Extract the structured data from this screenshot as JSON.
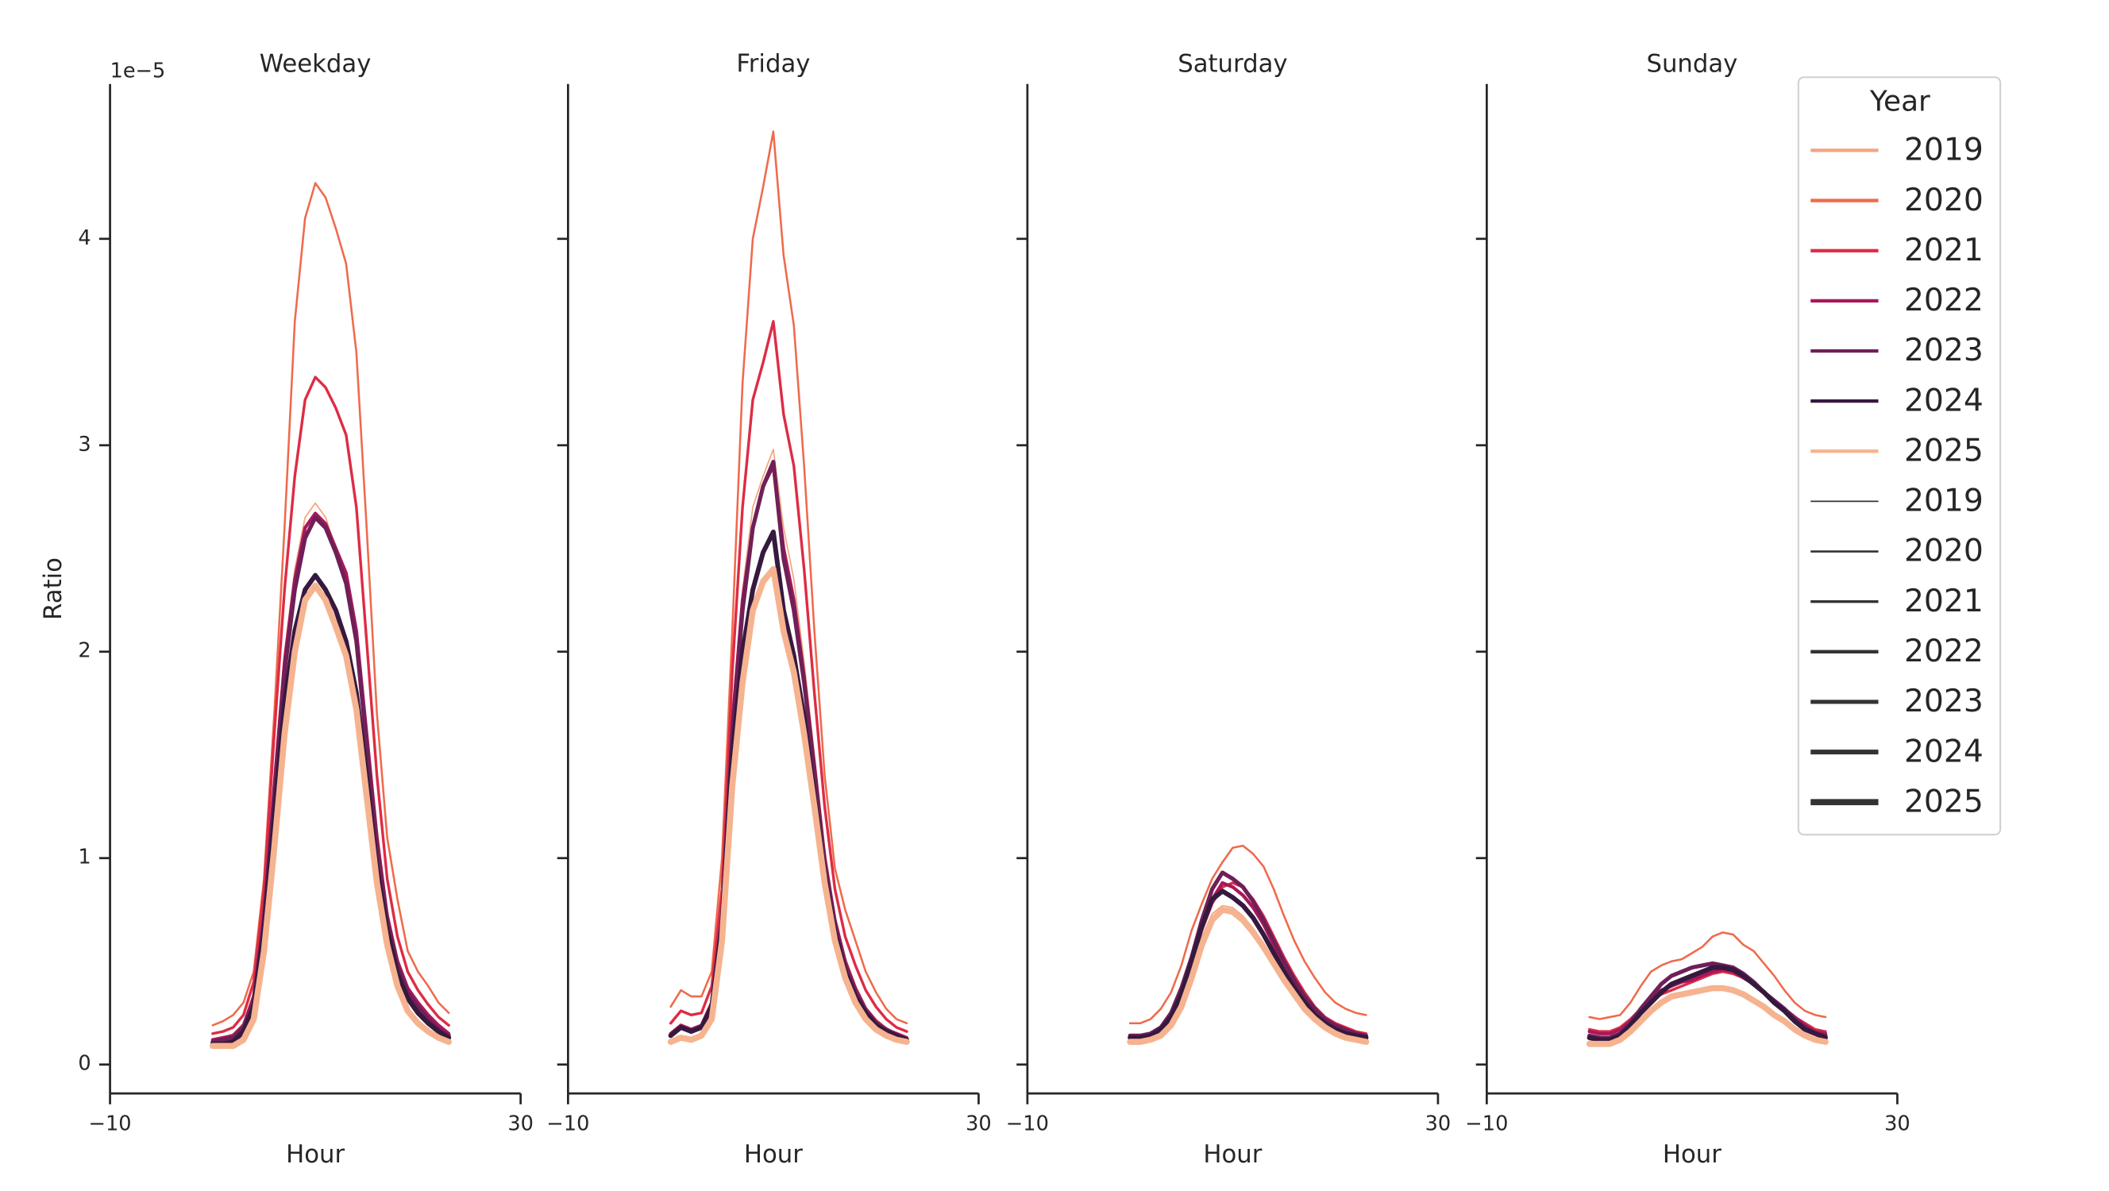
{
  "chart_data": [
    {
      "type": "line",
      "title": "Weekday",
      "xlabel": "Hour",
      "ylabel": "Ratio",
      "y_offset_label": "1e−5",
      "ytick_labels": true,
      "x": [
        0,
        1,
        2,
        3,
        4,
        5,
        6,
        7,
        8,
        9,
        10,
        11,
        12,
        13,
        14,
        15,
        16,
        17,
        18,
        19,
        20,
        21,
        22,
        23
      ],
      "xlim": [
        -10,
        30
      ],
      "xticks": [
        {
          "value": -10,
          "label": "−10"
        },
        30
      ],
      "ylim": [
        -0.14,
        4.75
      ],
      "yticks": [
        0,
        1,
        2,
        3,
        4
      ],
      "series": [
        {
          "name": "2019",
          "color": "#f3a481",
          "linewidth": 1,
          "values": [
            0.12,
            0.13,
            0.15,
            0.2,
            0.35,
            0.75,
            1.4,
            2.0,
            2.4,
            2.65,
            2.72,
            2.65,
            2.5,
            2.35,
            2.1,
            1.65,
            1.15,
            0.75,
            0.52,
            0.38,
            0.3,
            0.24,
            0.19,
            0.15
          ]
        },
        {
          "name": "2020",
          "color": "#ef6a4c",
          "linewidth": 1.5,
          "values": [
            0.19,
            0.21,
            0.24,
            0.3,
            0.45,
            0.9,
            1.7,
            2.6,
            3.6,
            4.1,
            4.27,
            4.2,
            4.05,
            3.88,
            3.45,
            2.6,
            1.7,
            1.1,
            0.8,
            0.55,
            0.45,
            0.38,
            0.3,
            0.25
          ]
        },
        {
          "name": "2021",
          "color": "#dd2c45",
          "linewidth": 2,
          "values": [
            0.15,
            0.16,
            0.18,
            0.24,
            0.4,
            0.85,
            1.6,
            2.3,
            2.85,
            3.22,
            3.33,
            3.28,
            3.18,
            3.05,
            2.7,
            2.05,
            1.4,
            0.9,
            0.62,
            0.45,
            0.36,
            0.29,
            0.23,
            0.19
          ]
        },
        {
          "name": "2022",
          "color": "#a8185a",
          "linewidth": 2.5,
          "values": [
            0.12,
            0.13,
            0.14,
            0.19,
            0.33,
            0.72,
            1.35,
            1.95,
            2.35,
            2.6,
            2.67,
            2.62,
            2.5,
            2.38,
            2.1,
            1.6,
            1.1,
            0.72,
            0.5,
            0.37,
            0.3,
            0.24,
            0.19,
            0.15
          ]
        },
        {
          "name": "2023",
          "color": "#701f57",
          "linewidth": 3,
          "values": [
            0.11,
            0.12,
            0.13,
            0.18,
            0.3,
            0.7,
            1.3,
            1.9,
            2.3,
            2.55,
            2.65,
            2.6,
            2.48,
            2.33,
            2.05,
            1.55,
            1.05,
            0.7,
            0.48,
            0.35,
            0.28,
            0.22,
            0.17,
            0.14
          ]
        },
        {
          "name": "2024",
          "color": "#35193e",
          "linewidth": 3.5,
          "values": [
            0.1,
            0.1,
            0.11,
            0.16,
            0.28,
            0.65,
            1.2,
            1.75,
            2.1,
            2.3,
            2.37,
            2.3,
            2.2,
            2.05,
            1.8,
            1.4,
            0.95,
            0.65,
            0.44,
            0.32,
            0.25,
            0.2,
            0.16,
            0.13
          ]
        },
        {
          "name": "2025",
          "color": "#f6b38f",
          "linewidth": 4.5,
          "values": [
            0.09,
            0.09,
            0.09,
            0.12,
            0.22,
            0.55,
            1.05,
            1.6,
            2.0,
            2.25,
            2.32,
            2.25,
            2.12,
            1.98,
            1.72,
            1.3,
            0.88,
            0.58,
            0.38,
            0.26,
            0.2,
            0.16,
            0.13,
            0.11
          ]
        }
      ]
    },
    {
      "type": "line",
      "title": "Friday",
      "xlabel": "Hour",
      "ytick_labels": false,
      "x": [
        0,
        1,
        2,
        3,
        4,
        5,
        6,
        7,
        8,
        9,
        10,
        11,
        12,
        13,
        14,
        15,
        16,
        17,
        18,
        19,
        20,
        21,
        22,
        23
      ],
      "xlim": [
        -10,
        30
      ],
      "xticks": [
        {
          "value": -10,
          "label": "−10"
        },
        30
      ],
      "ylim": [
        -0.14,
        4.75
      ],
      "yticks": [
        0,
        1,
        2,
        3,
        4
      ],
      "series": [
        {
          "name": "2019",
          "color": "#f3a481",
          "linewidth": 1,
          "values": [
            0.15,
            0.19,
            0.17,
            0.19,
            0.3,
            0.75,
            1.7,
            2.3,
            2.7,
            2.85,
            2.98,
            2.6,
            2.35,
            1.95,
            1.5,
            1.05,
            0.72,
            0.52,
            0.38,
            0.28,
            0.22,
            0.18,
            0.15,
            0.13
          ]
        },
        {
          "name": "2020",
          "color": "#ef6a4c",
          "linewidth": 1.5,
          "values": [
            0.28,
            0.36,
            0.33,
            0.33,
            0.45,
            1.0,
            2.1,
            3.3,
            4.0,
            4.25,
            4.52,
            3.92,
            3.58,
            2.9,
            2.1,
            1.4,
            0.95,
            0.75,
            0.6,
            0.45,
            0.35,
            0.27,
            0.22,
            0.2
          ]
        },
        {
          "name": "2021",
          "color": "#dd2c45",
          "linewidth": 2,
          "values": [
            0.2,
            0.26,
            0.24,
            0.25,
            0.38,
            0.85,
            1.9,
            2.7,
            3.22,
            3.4,
            3.6,
            3.15,
            2.9,
            2.4,
            1.8,
            1.25,
            0.85,
            0.62,
            0.48,
            0.36,
            0.28,
            0.22,
            0.18,
            0.16
          ]
        },
        {
          "name": "2022",
          "color": "#a8185a",
          "linewidth": 2.5,
          "values": [
            0.15,
            0.19,
            0.17,
            0.19,
            0.3,
            0.72,
            1.65,
            2.25,
            2.6,
            2.8,
            2.9,
            2.5,
            2.25,
            1.88,
            1.45,
            1.0,
            0.7,
            0.5,
            0.37,
            0.27,
            0.21,
            0.17,
            0.15,
            0.13
          ]
        },
        {
          "name": "2023",
          "color": "#701f57",
          "linewidth": 3,
          "values": [
            0.14,
            0.18,
            0.16,
            0.18,
            0.29,
            0.7,
            1.6,
            2.2,
            2.6,
            2.8,
            2.92,
            2.45,
            2.2,
            1.85,
            1.42,
            0.98,
            0.68,
            0.48,
            0.35,
            0.26,
            0.2,
            0.17,
            0.14,
            0.12
          ]
        },
        {
          "name": "2024",
          "color": "#35193e",
          "linewidth": 3.5,
          "values": [
            0.14,
            0.18,
            0.16,
            0.18,
            0.28,
            0.68,
            1.5,
            2.0,
            2.3,
            2.48,
            2.58,
            2.2,
            1.98,
            1.68,
            1.3,
            0.92,
            0.64,
            0.45,
            0.33,
            0.25,
            0.19,
            0.16,
            0.14,
            0.12
          ]
        },
        {
          "name": "2025",
          "color": "#f6b38f",
          "linewidth": 4.5,
          "values": [
            0.11,
            0.13,
            0.12,
            0.14,
            0.22,
            0.6,
            1.35,
            1.85,
            2.2,
            2.34,
            2.4,
            2.1,
            1.9,
            1.6,
            1.25,
            0.88,
            0.6,
            0.42,
            0.3,
            0.22,
            0.17,
            0.14,
            0.12,
            0.11
          ]
        }
      ]
    },
    {
      "type": "line",
      "title": "Saturday",
      "xlabel": "Hour",
      "ytick_labels": false,
      "x": [
        0,
        1,
        2,
        3,
        4,
        5,
        6,
        7,
        8,
        9,
        10,
        11,
        12,
        13,
        14,
        15,
        16,
        17,
        18,
        19,
        20,
        21,
        22,
        23
      ],
      "xlim": [
        -10,
        30
      ],
      "xticks": [
        {
          "value": -10,
          "label": "−10"
        },
        30
      ],
      "ylim": [
        -0.14,
        4.75
      ],
      "yticks": [
        0,
        1,
        2,
        3,
        4
      ],
      "series": [
        {
          "name": "2019",
          "color": "#f3a481",
          "linewidth": 1,
          "values": [
            0.12,
            0.12,
            0.13,
            0.15,
            0.21,
            0.31,
            0.46,
            0.62,
            0.73,
            0.77,
            0.76,
            0.72,
            0.66,
            0.59,
            0.51,
            0.43,
            0.35,
            0.28,
            0.23,
            0.19,
            0.16,
            0.14,
            0.13,
            0.12
          ]
        },
        {
          "name": "2020",
          "color": "#ef6a4c",
          "linewidth": 1.5,
          "values": [
            0.2,
            0.2,
            0.22,
            0.27,
            0.35,
            0.48,
            0.65,
            0.78,
            0.9,
            0.98,
            1.05,
            1.06,
            1.02,
            0.96,
            0.85,
            0.72,
            0.6,
            0.5,
            0.42,
            0.35,
            0.3,
            0.27,
            0.25,
            0.24
          ]
        },
        {
          "name": "2021",
          "color": "#dd2c45",
          "linewidth": 2,
          "values": [
            0.14,
            0.14,
            0.15,
            0.18,
            0.25,
            0.36,
            0.5,
            0.65,
            0.78,
            0.86,
            0.88,
            0.86,
            0.8,
            0.72,
            0.62,
            0.52,
            0.43,
            0.35,
            0.28,
            0.23,
            0.2,
            0.18,
            0.16,
            0.15
          ]
        },
        {
          "name": "2022",
          "color": "#a8185a",
          "linewidth": 2.5,
          "values": [
            0.14,
            0.14,
            0.15,
            0.18,
            0.25,
            0.36,
            0.5,
            0.66,
            0.8,
            0.88,
            0.86,
            0.82,
            0.76,
            0.68,
            0.58,
            0.48,
            0.4,
            0.32,
            0.26,
            0.22,
            0.19,
            0.17,
            0.15,
            0.14
          ]
        },
        {
          "name": "2023",
          "color": "#701f57",
          "linewidth": 3,
          "values": [
            0.14,
            0.14,
            0.15,
            0.18,
            0.25,
            0.37,
            0.52,
            0.7,
            0.85,
            0.93,
            0.9,
            0.86,
            0.79,
            0.7,
            0.6,
            0.5,
            0.41,
            0.33,
            0.27,
            0.22,
            0.19,
            0.17,
            0.15,
            0.14
          ]
        },
        {
          "name": "2024",
          "color": "#35193e",
          "linewidth": 3.5,
          "values": [
            0.13,
            0.13,
            0.14,
            0.17,
            0.23,
            0.34,
            0.5,
            0.67,
            0.8,
            0.84,
            0.81,
            0.77,
            0.71,
            0.63,
            0.54,
            0.45,
            0.37,
            0.3,
            0.24,
            0.2,
            0.17,
            0.15,
            0.14,
            0.13
          ]
        },
        {
          "name": "2025",
          "color": "#f6b38f",
          "linewidth": 4.5,
          "values": [
            0.11,
            0.11,
            0.12,
            0.14,
            0.19,
            0.28,
            0.42,
            0.58,
            0.7,
            0.75,
            0.74,
            0.7,
            0.64,
            0.57,
            0.49,
            0.41,
            0.34,
            0.27,
            0.22,
            0.18,
            0.15,
            0.13,
            0.12,
            0.11
          ]
        }
      ]
    },
    {
      "type": "line",
      "title": "Sunday",
      "xlabel": "Hour",
      "ytick_labels": false,
      "x": [
        0,
        1,
        2,
        3,
        4,
        5,
        6,
        7,
        8,
        9,
        10,
        11,
        12,
        13,
        14,
        15,
        16,
        17,
        18,
        19,
        20,
        21,
        22,
        23
      ],
      "xlim": [
        -10,
        30
      ],
      "xticks": [
        {
          "value": -10,
          "label": "−10"
        },
        30
      ],
      "ylim": [
        -0.14,
        4.75
      ],
      "yticks": [
        0,
        1,
        2,
        3,
        4
      ],
      "series": [
        {
          "name": "2019",
          "color": "#f3a481",
          "linewidth": 1,
          "values": [
            0.12,
            0.11,
            0.11,
            0.13,
            0.17,
            0.22,
            0.27,
            0.31,
            0.34,
            0.35,
            0.36,
            0.37,
            0.38,
            0.38,
            0.37,
            0.35,
            0.32,
            0.29,
            0.25,
            0.22,
            0.18,
            0.15,
            0.13,
            0.12
          ]
        },
        {
          "name": "2020",
          "color": "#ef6a4c",
          "linewidth": 1.5,
          "values": [
            0.23,
            0.22,
            0.23,
            0.24,
            0.3,
            0.38,
            0.45,
            0.48,
            0.5,
            0.51,
            0.54,
            0.57,
            0.62,
            0.64,
            0.63,
            0.58,
            0.55,
            0.49,
            0.43,
            0.36,
            0.3,
            0.26,
            0.24,
            0.23
          ]
        },
        {
          "name": "2021",
          "color": "#dd2c45",
          "linewidth": 2,
          "values": [
            0.17,
            0.16,
            0.16,
            0.18,
            0.22,
            0.27,
            0.31,
            0.34,
            0.36,
            0.38,
            0.4,
            0.42,
            0.44,
            0.45,
            0.44,
            0.42,
            0.39,
            0.35,
            0.31,
            0.27,
            0.23,
            0.2,
            0.17,
            0.16
          ]
        },
        {
          "name": "2022",
          "color": "#a8185a",
          "linewidth": 2.5,
          "values": [
            0.16,
            0.15,
            0.15,
            0.17,
            0.21,
            0.27,
            0.32,
            0.36,
            0.38,
            0.4,
            0.41,
            0.43,
            0.45,
            0.46,
            0.45,
            0.42,
            0.39,
            0.35,
            0.31,
            0.27,
            0.23,
            0.19,
            0.16,
            0.15
          ]
        },
        {
          "name": "2023",
          "color": "#701f57",
          "linewidth": 3,
          "values": [
            0.14,
            0.13,
            0.13,
            0.15,
            0.2,
            0.27,
            0.33,
            0.39,
            0.43,
            0.45,
            0.47,
            0.48,
            0.49,
            0.48,
            0.47,
            0.44,
            0.4,
            0.35,
            0.31,
            0.27,
            0.22,
            0.18,
            0.15,
            0.14
          ]
        },
        {
          "name": "2024",
          "color": "#35193e",
          "linewidth": 3.5,
          "values": [
            0.13,
            0.12,
            0.12,
            0.14,
            0.19,
            0.25,
            0.3,
            0.35,
            0.39,
            0.41,
            0.43,
            0.45,
            0.47,
            0.47,
            0.46,
            0.43,
            0.39,
            0.35,
            0.3,
            0.26,
            0.21,
            0.17,
            0.15,
            0.13
          ]
        },
        {
          "name": "2025",
          "color": "#f6b38f",
          "linewidth": 4.5,
          "values": [
            0.1,
            0.1,
            0.1,
            0.12,
            0.16,
            0.21,
            0.26,
            0.3,
            0.33,
            0.34,
            0.35,
            0.36,
            0.37,
            0.37,
            0.36,
            0.34,
            0.31,
            0.28,
            0.24,
            0.21,
            0.17,
            0.14,
            0.12,
            0.11
          ]
        }
      ]
    }
  ],
  "legend": {
    "title": "Year",
    "position": "right",
    "size_color": "#333333",
    "size_entries": [
      {
        "label": "2019",
        "width": 1
      },
      {
        "label": "2020",
        "width": 1.5
      },
      {
        "label": "2021",
        "width": 2
      },
      {
        "label": "2022",
        "width": 2.5
      },
      {
        "label": "2023",
        "width": 3
      },
      {
        "label": "2024",
        "width": 3.5
      },
      {
        "label": "2025",
        "width": 4.5
      }
    ]
  }
}
